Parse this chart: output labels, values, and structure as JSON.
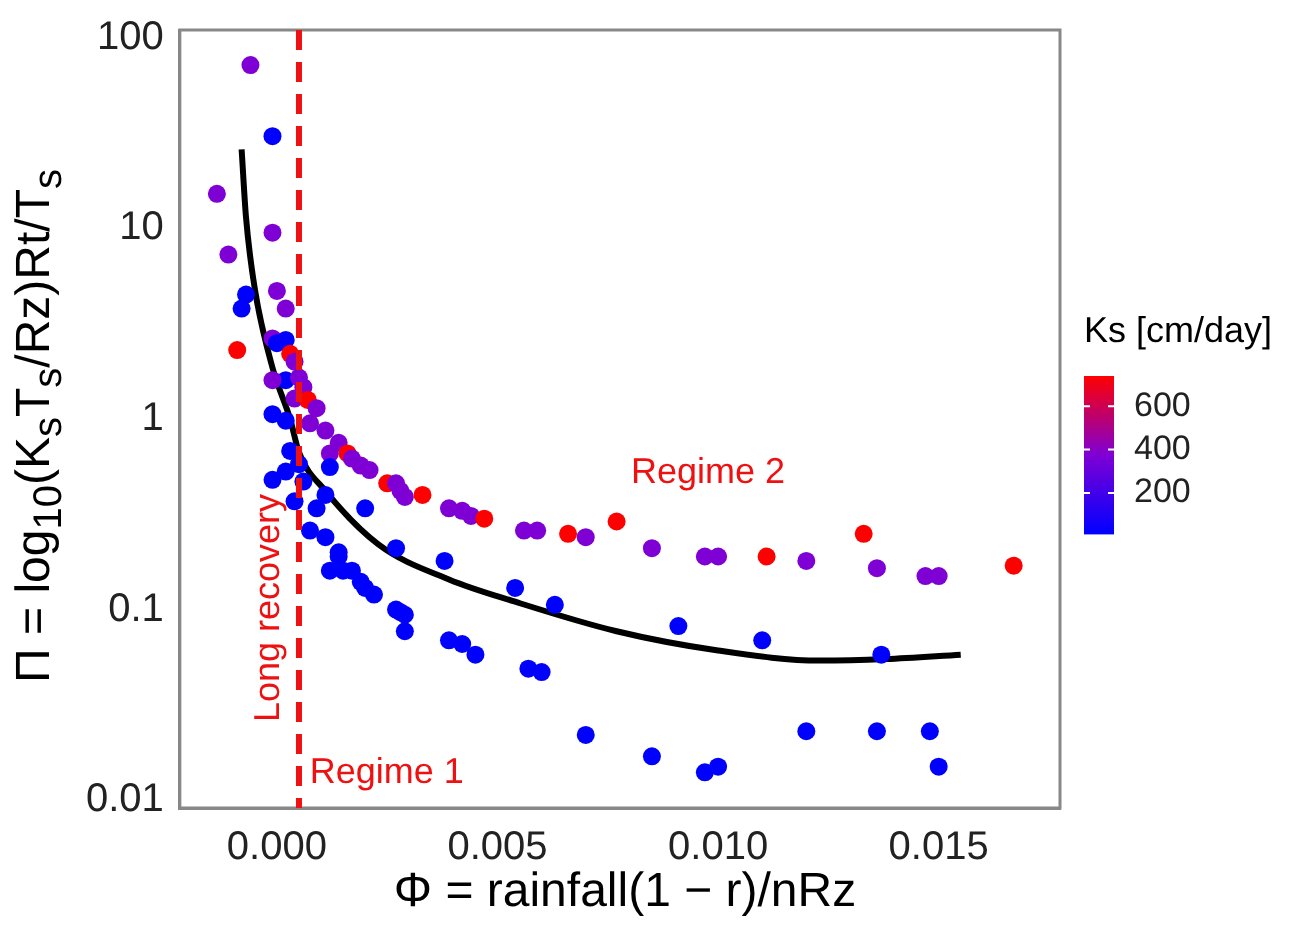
{
  "chart_data": {
    "type": "scatter",
    "xlabel": "Φ =  rainfall(1 − r)/nRz",
    "ylabel": "Π =  log$_{10}$(K$_{s}$T$_{s}$/Rz)Rt/T$_{s}$",
    "clabel": "Ks [cm/day]",
    "clim": [
      10,
      740
    ],
    "cticks": [
      200,
      400,
      600
    ],
    "xlim": [
      -0.0022,
      0.01775
    ],
    "xticks": [
      {
        "value": 0,
        "label": "0.000"
      },
      {
        "value": 0.005,
        "label": "0.005"
      },
      {
        "value": 0.01,
        "label": "0.010"
      },
      {
        "value": 0.015,
        "label": "0.015"
      }
    ],
    "ylim": [
      0.0091,
      110
    ],
    "yticks": [
      {
        "value": 0.01,
        "label": "0.01"
      },
      {
        "value": 0.1,
        "label": "0.1"
      },
      1,
      10,
      100
    ],
    "log": "y",
    "grid": false,
    "legend": false,
    "series": [
      {
        "marker": "circle",
        "x": [
          -0.0006,
          -0.0001,
          -0.00136,
          -0.0001,
          -0.0011,
          -0.0007,
          -0.0008,
          0.0,
          0.0002,
          -0.0009,
          -0.0001,
          0.0,
          0.0002,
          0.0003,
          0.0004,
          0.0002,
          -0.0001,
          0.0005,
          0.0006,
          0.0004,
          0.0007,
          0.0009,
          0.00075,
          -0.0001,
          0.0002,
          0.0011,
          0.0014,
          0.0003,
          0.0016,
          0.0012,
          0.0017,
          0.0019,
          0.0021,
          0.0025,
          0.0027,
          0.0028,
          0.0029,
          0.0033,
          0.0039,
          0.0042,
          0.0044,
          0.0047,
          0.0056,
          0.0059,
          -0.0001,
          0.0002,
          0.0005,
          0.0004,
          0.0006,
          0.00075,
          0.0009,
          0.0011,
          0.0012,
          0.0011,
          0.0014,
          0.0014,
          0.0012,
          0.0015,
          0.0017,
          0.0019,
          0.002,
          0.002,
          0.0022,
          0.0027,
          0.0027,
          0.0028,
          0.0029,
          0.0029,
          0.0038,
          0.0039,
          0.0042,
          0.0045,
          0.0054,
          0.0057,
          0.006,
          0.0063,
          0.0066,
          0.007,
          0.0077,
          0.0085,
          0.0097,
          0.01,
          0.0111,
          0.012,
          0.0133,
          0.0136,
          0.0147,
          0.015,
          0.0167,
          0.007,
          0.0085,
          0.0091,
          0.0097,
          0.01,
          0.011,
          0.012,
          0.0136,
          0.0137,
          0.0148,
          0.015
        ],
        "values": [
          72,
          30.5,
          15.2,
          9.5,
          7.3,
          4.5,
          3.8,
          4.7,
          3.8,
          2.3,
          2.65,
          2.5,
          2.6,
          2.2,
          2.0,
          1.6,
          1.6,
          1.65,
          1.47,
          1.28,
          1.26,
          1.14,
          0.95,
          1.06,
          0.98,
          0.87,
          0.75,
          0.68,
          0.66,
          0.66,
          0.62,
          0.57,
          0.54,
          0.46,
          0.46,
          0.42,
          0.39,
          0.4,
          0.34,
          0.33,
          0.31,
          0.3,
          0.26,
          0.26,
          0.48,
          0.53,
          0.58,
          0.37,
          0.47,
          0.26,
          0.34,
          0.4,
          0.56,
          0.24,
          0.2,
          0.19,
          0.16,
          0.16,
          0.16,
          0.14,
          0.13,
          0.34,
          0.12,
          0.21,
          0.1,
          0.097,
          0.094,
          0.077,
          0.18,
          0.069,
          0.066,
          0.058,
          0.13,
          0.049,
          0.047,
          0.106,
          0.25,
          0.24,
          0.29,
          0.21,
          0.19,
          0.19,
          0.19,
          0.18,
          0.25,
          0.165,
          0.15,
          0.15,
          0.17,
          0.022,
          0.017,
          0.082,
          0.014,
          0.015,
          0.069,
          0.023,
          0.023,
          0.058,
          0.023,
          0.015
        ],
        "colors": [
          "#7f00d4",
          "#0000ff",
          "#7f00d4",
          "#7f00d4",
          "#7f00d4",
          "#0000ff",
          "#0000ff",
          "#7f00d4",
          "#7f00d4",
          "#ff0000",
          "#7f00d4",
          "#0000ff",
          "#0000ff",
          "#ff0000",
          "#7f00d4",
          "#0000ff",
          "#7f00d4",
          "#7f00d4",
          "#7f00d4",
          "#7f00d4",
          "#ff0000",
          "#7f00d4",
          "#7f00d4",
          "#0000ff",
          "#0000ff",
          "#7f00d4",
          "#7f00d4",
          "#0000ff",
          "#ff0000",
          "#7f00d4",
          "#7f00d4",
          "#7f00d4",
          "#7f00d4",
          "#ff0000",
          "#7f00d4",
          "#7f00d4",
          "#7f00d4",
          "#ff0000",
          "#7f00d4",
          "#7f00d4",
          "#7f00d4",
          "#ff0000",
          "#7f00d4",
          "#7f00d4",
          "#0000ff",
          "#0000ff",
          "#0000ff",
          "#0000ff",
          "#0000ff",
          "#0000ff",
          "#0000ff",
          "#0000ff",
          "#0000ff",
          "#0000ff",
          "#0000ff",
          "#0000ff",
          "#0000ff",
          "#0000ff",
          "#0000ff",
          "#0000ff",
          "#0000ff",
          "#0000ff",
          "#0000ff",
          "#0000ff",
          "#0000ff",
          "#0000ff",
          "#0000ff",
          "#0000ff",
          "#0000ff",
          "#0000ff",
          "#0000ff",
          "#0000ff",
          "#0000ff",
          "#0000ff",
          "#0000ff",
          "#0000ff",
          "#ff0000",
          "#7f00d4",
          "#ff0000",
          "#7f00d4",
          "#7f00d4",
          "#7f00d4",
          "#ff0000",
          "#7f00d4",
          "#ff0000",
          "#7f00d4",
          "#7f00d4",
          "#7f00d4",
          "#ff0000",
          "#0000ff",
          "#0000ff",
          "#0000ff",
          "#0000ff",
          "#0000ff",
          "#0000ff",
          "#0000ff",
          "#0000ff",
          "#0000ff",
          "#0000ff",
          "#0000ff"
        ]
      },
      {
        "type": "line",
        "marker": "none",
        "color": "#000000",
        "x": [
          -0.0008,
          -0.0007,
          -0.0005,
          -0.0001,
          0.0003,
          0.0005,
          0.0011,
          0.0023,
          0.0039,
          0.0054,
          0.0077,
          0.01,
          0.0123,
          0.0138,
          0.0155
        ],
        "values": [
          26,
          11.4,
          4.8,
          1.86,
          1.0,
          0.67,
          0.42,
          0.22,
          0.144,
          0.11,
          0.077,
          0.061,
          0.054,
          0.055,
          0.058
        ]
      }
    ],
    "ref_lines": [
      {
        "axis": "x",
        "value": 0.0005,
        "label": "Long recovery",
        "color": "#ee1111",
        "line_style": "dashed"
      }
    ],
    "annotations": [
      "Regime 2",
      "Regime 1"
    ]
  }
}
